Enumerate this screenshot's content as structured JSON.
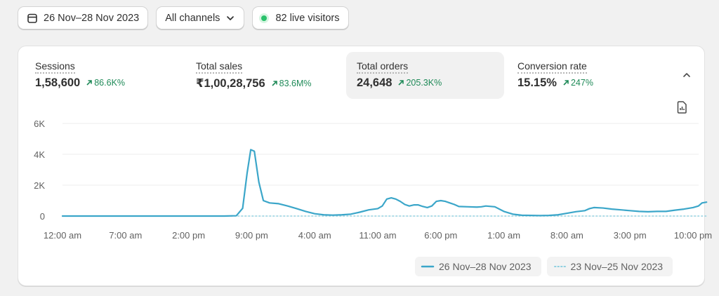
{
  "toolbar": {
    "date_range": "26 Nov–28 Nov 2023",
    "channels": "All channels",
    "live_visitors": "82 live visitors"
  },
  "metrics": [
    {
      "label": "Sessions",
      "value": "1,58,600",
      "change": "86.6K%"
    },
    {
      "label": "Total sales",
      "value": "₹1,00,28,756",
      "change": "83.6M%"
    },
    {
      "label": "Total orders",
      "value": "24,648",
      "change": "205.3K%"
    },
    {
      "label": "Conversion rate",
      "value": "15.15%",
      "change": "247%"
    }
  ],
  "colors": {
    "primary_series": "#3ba6c9",
    "comparison_series": "#8fd0e0",
    "trend_up": "#1f8a58",
    "active_metric_bg": "#f1f1f1"
  },
  "chart_data": {
    "type": "line",
    "title": "",
    "ylabel": "",
    "xlabel": "",
    "ylim": [
      0,
      6000
    ],
    "y_ticks": [
      "6K",
      "4K",
      "2K",
      "0"
    ],
    "y_tick_values": [
      6000,
      4000,
      2000,
      0
    ],
    "x_tick_labels": [
      "12:00 am",
      "7:00 am",
      "2:00 pm",
      "9:00 pm",
      "4:00 am",
      "11:00 am",
      "6:00 pm",
      "1:00 am",
      "8:00 am",
      "3:00 pm",
      "10:00 pm"
    ],
    "x_tick_hours": [
      0,
      7,
      14,
      21,
      28,
      35,
      42,
      49,
      56,
      63,
      70
    ],
    "grid": true,
    "series": [
      {
        "name": "26 Nov–28 Nov 2023",
        "style": "solid",
        "points": [
          [
            0,
            0
          ],
          [
            6,
            0
          ],
          [
            12,
            0
          ],
          [
            18,
            0
          ],
          [
            19.3,
            20
          ],
          [
            20,
            500
          ],
          [
            20.5,
            2800
          ],
          [
            20.9,
            4300
          ],
          [
            21.3,
            4200
          ],
          [
            21.8,
            2200
          ],
          [
            22.3,
            1000
          ],
          [
            23,
            850
          ],
          [
            24,
            800
          ],
          [
            25,
            650
          ],
          [
            26,
            480
          ],
          [
            27,
            300
          ],
          [
            28,
            150
          ],
          [
            29,
            80
          ],
          [
            30,
            60
          ],
          [
            31,
            80
          ],
          [
            32,
            120
          ],
          [
            33,
            250
          ],
          [
            34,
            400
          ],
          [
            35,
            480
          ],
          [
            35.5,
            650
          ],
          [
            36,
            1100
          ],
          [
            36.5,
            1180
          ],
          [
            37,
            1100
          ],
          [
            37.5,
            950
          ],
          [
            38,
            750
          ],
          [
            38.5,
            650
          ],
          [
            39,
            720
          ],
          [
            39.5,
            720
          ],
          [
            40,
            620
          ],
          [
            40.5,
            550
          ],
          [
            41,
            650
          ],
          [
            41.5,
            950
          ],
          [
            42,
            1000
          ],
          [
            42.5,
            950
          ],
          [
            43,
            850
          ],
          [
            43.5,
            750
          ],
          [
            44,
            620
          ],
          [
            45,
            600
          ],
          [
            46,
            580
          ],
          [
            46.5,
            600
          ],
          [
            47,
            650
          ],
          [
            48,
            600
          ],
          [
            49,
            300
          ],
          [
            50,
            120
          ],
          [
            51,
            50
          ],
          [
            52,
            40
          ],
          [
            53,
            30
          ],
          [
            54,
            40
          ],
          [
            55,
            80
          ],
          [
            56,
            180
          ],
          [
            57,
            280
          ],
          [
            58,
            350
          ],
          [
            58.5,
            480
          ],
          [
            59,
            550
          ],
          [
            60,
            520
          ],
          [
            61,
            450
          ],
          [
            62,
            400
          ],
          [
            63,
            350
          ],
          [
            64,
            300
          ],
          [
            65,
            280
          ],
          [
            66,
            300
          ],
          [
            67,
            300
          ],
          [
            68,
            380
          ],
          [
            69,
            450
          ],
          [
            70,
            550
          ],
          [
            70.6,
            650
          ],
          [
            71,
            850
          ],
          [
            71.5,
            900
          ]
        ]
      },
      {
        "name": "23 Nov–25 Nov 2023",
        "style": "dotted",
        "points": [
          [
            0,
            0
          ],
          [
            71.5,
            0
          ]
        ]
      }
    ]
  }
}
